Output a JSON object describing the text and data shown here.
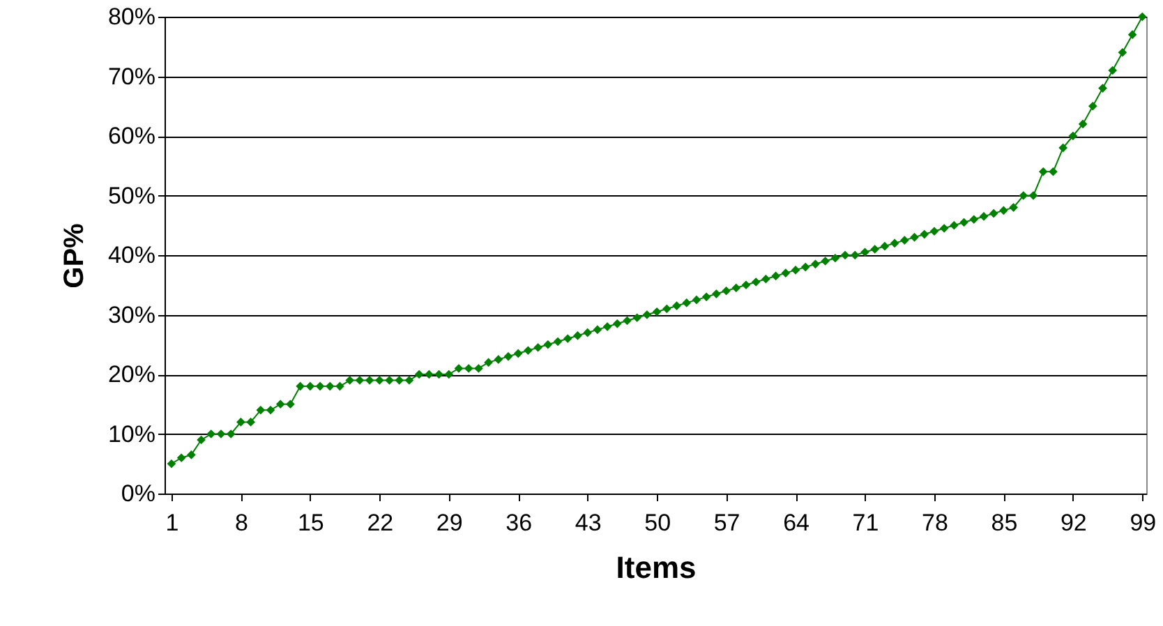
{
  "chart_data": {
    "type": "line",
    "xlabel": "Items",
    "ylabel": "GP%",
    "x": [
      1,
      2,
      3,
      4,
      5,
      6,
      7,
      8,
      9,
      10,
      11,
      12,
      13,
      14,
      15,
      16,
      17,
      18,
      19,
      20,
      21,
      22,
      23,
      24,
      25,
      26,
      27,
      28,
      29,
      30,
      31,
      32,
      33,
      34,
      35,
      36,
      37,
      38,
      39,
      40,
      41,
      42,
      43,
      44,
      45,
      46,
      47,
      48,
      49,
      50,
      51,
      52,
      53,
      54,
      55,
      56,
      57,
      58,
      59,
      60,
      61,
      62,
      63,
      64,
      65,
      66,
      67,
      68,
      69,
      70,
      71,
      72,
      73,
      74,
      75,
      76,
      77,
      78,
      79,
      80,
      81,
      82,
      83,
      84,
      85,
      86,
      87,
      88,
      89,
      90,
      91,
      92,
      93,
      94,
      95,
      96,
      97,
      98,
      99
    ],
    "series": [
      {
        "color": "#008000",
        "values": [
          5,
          6,
          6.5,
          9,
          10,
          10,
          10,
          12,
          12,
          14,
          14,
          15,
          15,
          18,
          18,
          18,
          18,
          18,
          19,
          19,
          19,
          19,
          19,
          19,
          19,
          20,
          20,
          20,
          20,
          21,
          21,
          21,
          22,
          22.5,
          23,
          23.5,
          24,
          24.5,
          25,
          25.5,
          26,
          26.5,
          27,
          27.5,
          28,
          28.5,
          29,
          29.5,
          30,
          30.5,
          31,
          31.5,
          32,
          32.5,
          33,
          33.5,
          34,
          34.5,
          35,
          35.5,
          36,
          36.5,
          37,
          37.5,
          38,
          38.5,
          39,
          39.5,
          40,
          40,
          40.5,
          41,
          41.5,
          42,
          42.5,
          43,
          43.5,
          44,
          44.5,
          45,
          45.5,
          46,
          46.5,
          47,
          47.5,
          48,
          50,
          50,
          54,
          54,
          58,
          60,
          62,
          65,
          68,
          71,
          74,
          77,
          80
        ]
      }
    ],
    "xlim": [
      0.3,
      99.4
    ],
    "xticks": [
      1,
      8,
      15,
      22,
      29,
      36,
      43,
      50,
      57,
      64,
      71,
      78,
      85,
      92,
      99
    ],
    "ylim": [
      0,
      80
    ],
    "yticks": [
      {
        "value": 0,
        "label": "0%"
      },
      {
        "value": 10,
        "label": "10%"
      },
      {
        "value": 20,
        "label": "20%"
      },
      {
        "value": 30,
        "label": "30%"
      },
      {
        "value": 40,
        "label": "40%"
      },
      {
        "value": 50,
        "label": "50%"
      },
      {
        "value": 60,
        "label": "60%"
      },
      {
        "value": 70,
        "label": "70%"
      },
      {
        "value": 80,
        "label": "80%"
      }
    ],
    "grid": "y",
    "marker": "diamond",
    "line_style": "solid"
  }
}
